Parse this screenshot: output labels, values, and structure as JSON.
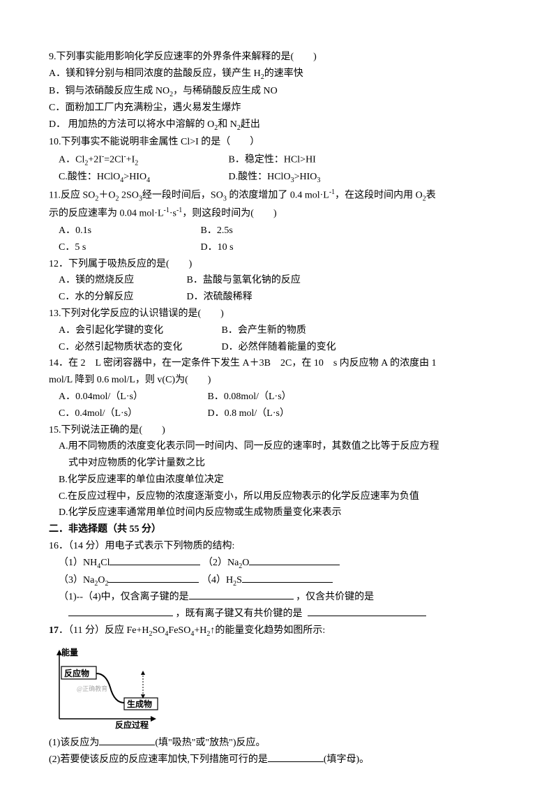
{
  "q9": {
    "stem": "9.下列事实能用影响化学反应速率的外界条件来解释的是(　　)",
    "A": "A．镁和锌分别与相同浓度的盐酸反应，镁产生 H₂的速率快",
    "B": "B．铜与浓硝酸反应生成 NO₂，与稀硝酸反应生成 NO",
    "C": "C．面粉加工厂内充满粉尘，遇火易发生爆炸",
    "D": "D．  用加热的方法可以将水中溶解的 O₂和 N₂赶出"
  },
  "q10": {
    "stem": "10.下列事实不能说明非金属性 Cl>I 的是（　　）",
    "A": "A．Cl₂+2I⁻=2Cl⁻+I₂",
    "B": "B．稳定性：HCl>HI",
    "C": "C.酸性：HClO₄>HIO₄",
    "D": "D.酸性：HClO₃>HIO₃"
  },
  "q11": {
    "line1": "11.反应 SO₂＋O₂ 2SO₃经一段时间后，SO₃ 的浓度增加了 0.4 mol·L⁻¹，在这段时间内用 O₂表",
    "line2": "示的反应速率为 0.04 mol·L⁻¹·s⁻¹，则这段时间为(　　)",
    "A": "A．0.1s",
    "B": "B．2.5s",
    "C": "C．5 s",
    "D": "D．10 s"
  },
  "q12": {
    "stem": "12．下列属于吸热反应的是(　　)",
    "A": "A．镁的燃烧反应",
    "B": "B．盐酸与氢氧化钠的反应",
    "C": "C．水的分解反应",
    "D": "D．浓硫酸稀释"
  },
  "q13": {
    "stem": "13.下列对化学反应的认识错误的是(　　)",
    "A": "A．会引起化学键的变化",
    "B": "B．会产生新的物质",
    "C": "C．必然引起物质状态的变化",
    "D": "D．必然伴随着能量的变化"
  },
  "q14": {
    "line1": "14．在 2　L 密闭容器中，在一定条件下发生 A＋3B　2C，在 10　s 内反应物 A 的浓度由 1",
    "line2": "mol/L 降到 0.6 mol/L，则 v(C)为(　　)",
    "A": "A．0.04mol/（L·s）",
    "B": "B．0.08mol/（L·s）",
    "C": "C．0.4mol/（L·s）",
    "D": "D．0.8 mol/（L·s）"
  },
  "q15": {
    "stem": "15.下列说法正确的是(　　)",
    "A1": "A.用不同物质的浓度变化表示同一时间内、同一反应的速率时，其数值之比等于反应方程",
    "A2": "式中对应物质的化学计量数之比",
    "B": "B.化学反应速率的单位由浓度单位决定",
    "C": "C.在反应过程中，反应物的浓度逐渐变小，所以用反应物表示的化学反应速率为负值",
    "D": "D.化学反应速率通常用单位时间内反应物或生成物质量变化来表示"
  },
  "section2": "二．非选择题（共 55 分）",
  "q16": {
    "stem": "16．（14 分）用电子式表示下列物质的结构:",
    "p1a": "（1）NH₄Cl",
    "p1b": "（2）Na₂O",
    "p2a": "（3）Na₂O₂",
    "p2b": "（4）H₂S",
    "p3": "（1)--（4)中，仅含离子键的是",
    "p3b": "，仅含共价键的是",
    "p4": "，既有离子键又有共价键的是"
  },
  "q17": {
    "stem": "17．（11 分）反应 Fe+H₂SO₄FeSO₄+H₂↑的能量变化趋势如图所示:",
    "p1": "(1)该反应为",
    "p1b": "(填\"吸热\"或\"放热\")反应。",
    "p2": "(2)若要使该反应的反应速率加快,下列措施可行的是",
    "p2b": "(填字母)。"
  },
  "diagram": {
    "y_label": "能量",
    "x_label": "反应过程",
    "reactant": "反应物",
    "product": "生成物",
    "watermark": "@正确教育"
  }
}
